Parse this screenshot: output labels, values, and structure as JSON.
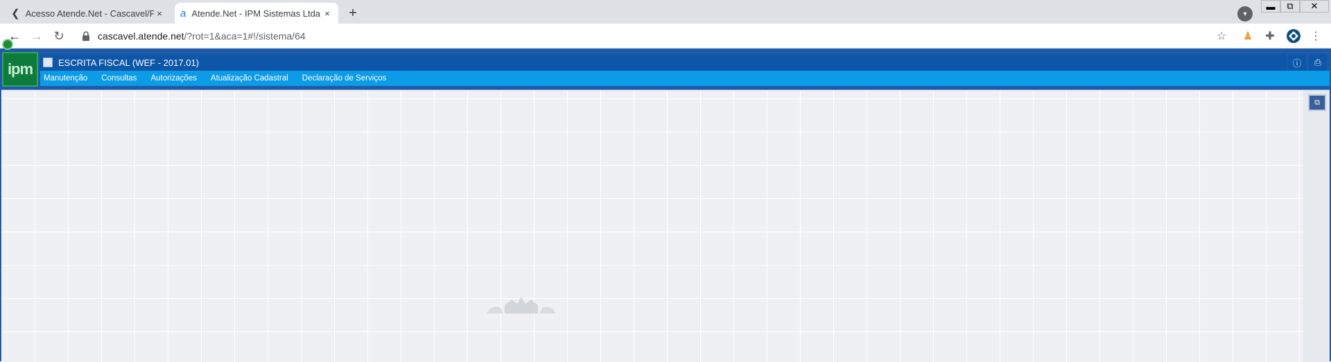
{
  "browser": {
    "tabs": [
      {
        "title": "Acesso Atende.Net - Cascavel/PR",
        "close": "×",
        "icon": "chevron-left-icon"
      },
      {
        "title": "Atende.Net - IPM Sistemas Ltda",
        "close": "×",
        "icon": "atende-icon",
        "active": true
      }
    ],
    "new_tab": "+",
    "url_host": "cascavel.atende.net",
    "url_path": "/?rot=1&aca=1#!/sistema/64",
    "window_controls": {
      "minimize": "▬",
      "maximize": "⧉",
      "close": "✕"
    }
  },
  "app": {
    "logo_text": "ipm",
    "title": "ESCRITA FISCAL (WEF - 2017.01)",
    "menu": [
      "Manutenção",
      "Consultas",
      "Autorizações",
      "Atualização Cadastral",
      "Declaração de Serviços"
    ],
    "colors": {
      "title_bar": "#0d56a8",
      "menu_bar": "#0c9be6",
      "logo_bg": "#0e7b3c"
    }
  }
}
